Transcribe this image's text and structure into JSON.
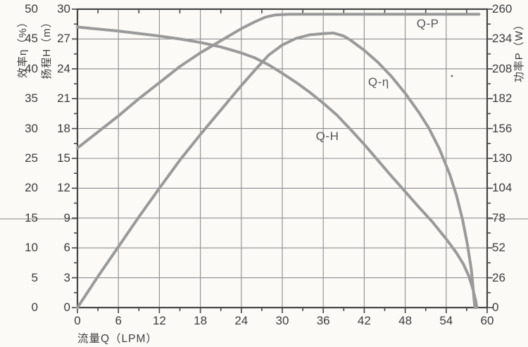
{
  "chart_data": {
    "type": "line",
    "title": "",
    "xlabel": "流量Q（LPM）",
    "grid": true,
    "legend_position": "inline-curve-labels",
    "x_axis": {
      "min": 0,
      "max": 60,
      "major_step": 6,
      "minor_step": 3,
      "tick_labels": [
        "0",
        "6",
        "12",
        "18",
        "24",
        "30",
        "36",
        "42",
        "48",
        "54",
        "60"
      ]
    },
    "left_axis_efficiency": {
      "label": "效率η（%）",
      "unit": "%",
      "min": 0,
      "max": 50,
      "major_step": 5,
      "minor_step": 2.5,
      "tick_labels": [
        "50",
        "45",
        "40",
        "35",
        "30",
        "25",
        "20",
        "15",
        "10",
        "5",
        "0"
      ]
    },
    "left_axis_head": {
      "label": "扬程H（m）",
      "unit": "m",
      "min": 0,
      "max": 30,
      "major_step": 3,
      "minor_step": 1.5,
      "tick_labels": [
        "30",
        "27",
        "24",
        "21",
        "18",
        "15",
        "12",
        "9",
        "6",
        "3",
        "0"
      ]
    },
    "right_axis_power": {
      "label": "功率P（W）",
      "unit": "W",
      "min": 0,
      "max": 260,
      "major_step": 26,
      "minor_step": 13,
      "tick_labels": [
        "260",
        "234",
        "208",
        "182",
        "156",
        "130",
        "104",
        "78",
        "52",
        "26",
        "0"
      ]
    },
    "series": [
      {
        "name": "Q-H",
        "axis": "head",
        "label_at": [
          36.6,
          17.2
        ],
        "points": [
          [
            0,
            28.2
          ],
          [
            3,
            28.0
          ],
          [
            6,
            27.8
          ],
          [
            9,
            27.55
          ],
          [
            12,
            27.3
          ],
          [
            15,
            27.0
          ],
          [
            18,
            26.65
          ],
          [
            21,
            26.2
          ],
          [
            24,
            25.6
          ],
          [
            26,
            25.1
          ],
          [
            28,
            24.4
          ],
          [
            30,
            23.55
          ],
          [
            32,
            22.65
          ],
          [
            34,
            21.65
          ],
          [
            36,
            20.55
          ],
          [
            38,
            19.35
          ],
          [
            40,
            17.9
          ],
          [
            42,
            16.4
          ],
          [
            44,
            14.8
          ],
          [
            46,
            13.2
          ],
          [
            48,
            11.65
          ],
          [
            50,
            10.1
          ],
          [
            52,
            8.6
          ],
          [
            54,
            6.9
          ],
          [
            55.5,
            5.5
          ],
          [
            56.5,
            4.4
          ],
          [
            57.3,
            3.2
          ],
          [
            57.9,
            1.9
          ],
          [
            58.35,
            0.6
          ],
          [
            58.5,
            0
          ]
        ]
      },
      {
        "name": "Q-η",
        "axis": "efficiency",
        "label_at": [
          44.1,
          37.7
        ],
        "points": [
          [
            0,
            0
          ],
          [
            3,
            5.2
          ],
          [
            6,
            10.2
          ],
          [
            9,
            15.2
          ],
          [
            12,
            20.0
          ],
          [
            15,
            24.7
          ],
          [
            18,
            29.0
          ],
          [
            21,
            33.1
          ],
          [
            24,
            37.2
          ],
          [
            26,
            39.8
          ],
          [
            28,
            42.3
          ],
          [
            30,
            44.0
          ],
          [
            32,
            45.1
          ],
          [
            34,
            45.7
          ],
          [
            36,
            45.9
          ],
          [
            37.5,
            46.0
          ],
          [
            39,
            45.5
          ],
          [
            40,
            44.8
          ],
          [
            42,
            43.1
          ],
          [
            44,
            41.1
          ],
          [
            46,
            38.7
          ],
          [
            48,
            35.9
          ],
          [
            50,
            32.7
          ],
          [
            51.5,
            30.0
          ],
          [
            53,
            26.6
          ],
          [
            54.5,
            22.4
          ],
          [
            55.5,
            18.8
          ],
          [
            56.4,
            14.7
          ],
          [
            57.1,
            10.6
          ],
          [
            57.7,
            6.2
          ],
          [
            58.2,
            0
          ]
        ]
      },
      {
        "name": "Q-P",
        "axis": "power",
        "label_at": [
          51.3,
          247
        ],
        "points": [
          [
            0,
            139
          ],
          [
            3,
            153
          ],
          [
            6,
            167
          ],
          [
            9,
            182
          ],
          [
            12,
            196
          ],
          [
            15,
            210
          ],
          [
            18,
            222
          ],
          [
            20,
            229
          ],
          [
            22,
            236
          ],
          [
            24,
            243
          ],
          [
            26,
            249
          ],
          [
            27.5,
            253
          ],
          [
            29,
            255
          ],
          [
            31,
            255.5
          ],
          [
            36,
            255.5
          ],
          [
            42,
            255.5
          ],
          [
            48,
            255.5
          ],
          [
            54,
            255.5
          ],
          [
            58.8,
            255.5
          ]
        ]
      }
    ],
    "colors": {
      "curve": "#9a9a9a",
      "grid": "#8d8d8d",
      "border": "#454545",
      "text": "#3c3c3c",
      "background": "#fbfaf7"
    }
  }
}
